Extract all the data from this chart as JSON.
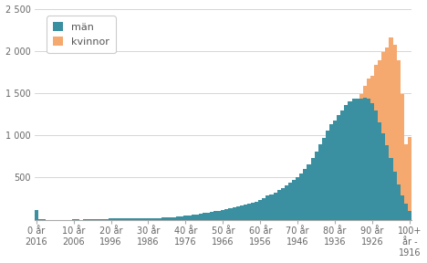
{
  "xlabel_top": [
    "0 år",
    "10 år",
    "20 år",
    "30 år",
    "40 år",
    "50 år",
    "60 år",
    "70 år",
    "80 år",
    "90 år",
    "100+\når -"
  ],
  "xlabel_bottom": [
    "2016",
    "2006",
    "1996",
    "1986",
    "1976",
    "1966",
    "1956",
    "1946",
    "1936",
    "1926",
    "1916"
  ],
  "ylim": [
    0,
    2500
  ],
  "yticks": [
    500,
    1000,
    1500,
    2000,
    2500
  ],
  "ytick_labels": [
    "500",
    "1 000",
    "1 500",
    "2 000",
    "2 500"
  ],
  "man_color": "#3a8fa0",
  "kvinna_color": "#f5a96e",
  "background_color": "#ffffff",
  "grid_color": "#d0d0d0",
  "legend_man": "män",
  "legend_kvinna": "kvinnor",
  "ages": [
    0,
    1,
    2,
    3,
    4,
    5,
    6,
    7,
    8,
    9,
    10,
    11,
    12,
    13,
    14,
    15,
    16,
    17,
    18,
    19,
    20,
    21,
    22,
    23,
    24,
    25,
    26,
    27,
    28,
    29,
    30,
    31,
    32,
    33,
    34,
    35,
    36,
    37,
    38,
    39,
    40,
    41,
    42,
    43,
    44,
    45,
    46,
    47,
    48,
    49,
    50,
    51,
    52,
    53,
    54,
    55,
    56,
    57,
    58,
    59,
    60,
    61,
    62,
    63,
    64,
    65,
    66,
    67,
    68,
    69,
    70,
    71,
    72,
    73,
    74,
    75,
    76,
    77,
    78,
    79,
    80,
    81,
    82,
    83,
    84,
    85,
    86,
    87,
    88,
    89,
    90,
    91,
    92,
    93,
    94,
    95,
    96,
    97,
    98,
    99,
    100
  ],
  "man": [
    120,
    5,
    3,
    2,
    2,
    2,
    2,
    2,
    2,
    2,
    3,
    3,
    2,
    3,
    4,
    6,
    8,
    10,
    11,
    12,
    15,
    16,
    15,
    15,
    15,
    15,
    15,
    16,
    16,
    17,
    18,
    19,
    21,
    23,
    25,
    28,
    31,
    34,
    37,
    41,
    46,
    52,
    58,
    65,
    72,
    80,
    87,
    93,
    100,
    108,
    118,
    128,
    138,
    148,
    158,
    168,
    178,
    188,
    200,
    215,
    235,
    260,
    285,
    305,
    325,
    355,
    375,
    405,
    435,
    470,
    510,
    550,
    600,
    660,
    730,
    810,
    890,
    970,
    1060,
    1130,
    1180,
    1240,
    1300,
    1360,
    1400,
    1440,
    1430,
    1430,
    1450,
    1440,
    1380,
    1300,
    1150,
    1020,
    880,
    730,
    570,
    420,
    290,
    190,
    110
  ],
  "kvinna": [
    70,
    3,
    2,
    2,
    2,
    2,
    2,
    2,
    2,
    2,
    2,
    2,
    2,
    2,
    3,
    4,
    4,
    5,
    5,
    6,
    6,
    7,
    7,
    7,
    7,
    7,
    7,
    8,
    8,
    8,
    9,
    9,
    10,
    10,
    11,
    12,
    13,
    14,
    15,
    17,
    19,
    21,
    23,
    26,
    28,
    31,
    33,
    35,
    37,
    40,
    43,
    47,
    50,
    53,
    57,
    60,
    64,
    68,
    73,
    80,
    92,
    105,
    116,
    126,
    136,
    150,
    164,
    178,
    193,
    218,
    270,
    308,
    350,
    408,
    465,
    545,
    625,
    708,
    798,
    888,
    968,
    1048,
    1138,
    1220,
    1300,
    1370,
    1410,
    1490,
    1590,
    1670,
    1710,
    1840,
    1890,
    1990,
    2040,
    2160,
    2070,
    1890,
    1490,
    890,
    980
  ]
}
